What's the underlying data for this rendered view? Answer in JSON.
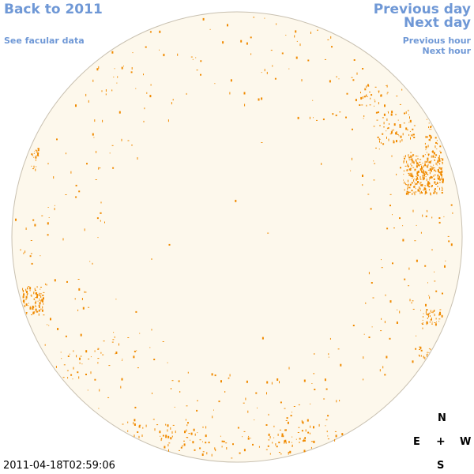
{
  "nav": {
    "back": "Back to 2011",
    "facular": "See facular data",
    "prev_day": "Previous day",
    "next_day": "Next day",
    "prev_hour": "Previous hour",
    "next_hour": "Next hour"
  },
  "compass": {
    "n": "N",
    "e": "E",
    "center": "+",
    "w": "W",
    "s": "S"
  },
  "timestamp": "2011-04-18T02:59:06",
  "colors": {
    "link": "#6f98d6",
    "disk_fill": "#fdf8ec",
    "disk_edge": "#c8c0b0",
    "feature": "#f08a00"
  }
}
